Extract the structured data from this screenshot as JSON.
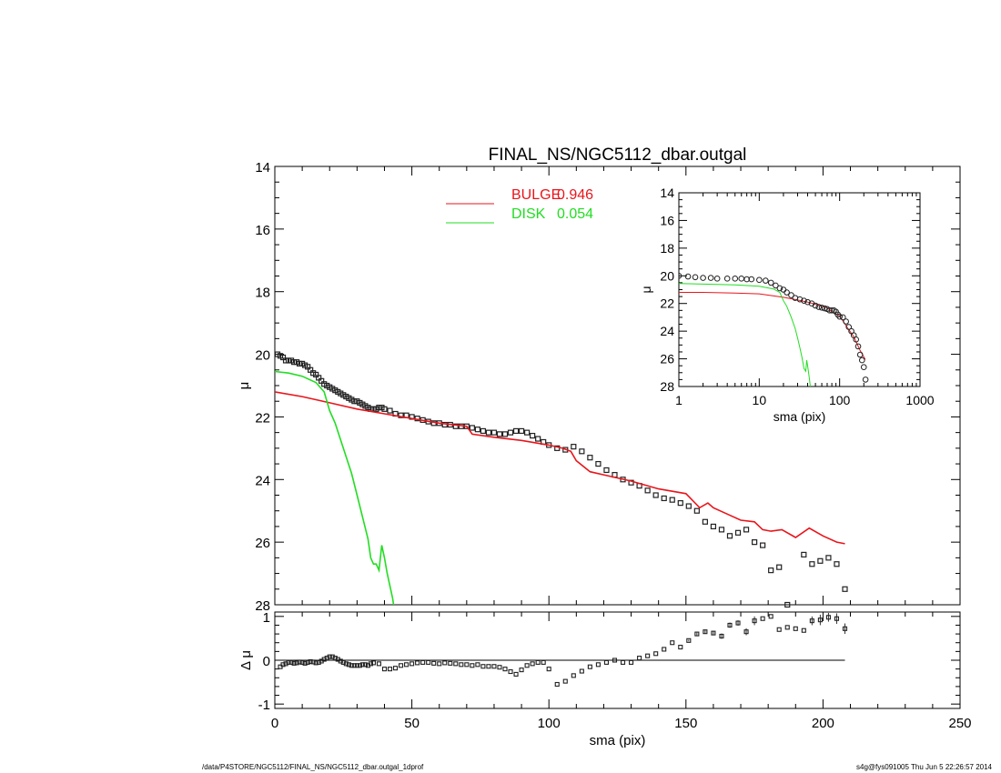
{
  "chart_data": [
    {
      "id": "main",
      "type": "scatter",
      "title": "FINAL_NS/NGC5112_dbar.outgal",
      "xlabel": "",
      "ylabel": "μ",
      "xlim": [
        0,
        250
      ],
      "ylim": [
        28,
        14
      ],
      "yticks": [
        "14",
        "16",
        "18",
        "20",
        "22",
        "24",
        "26",
        "28"
      ],
      "legend": [
        {
          "label": "BULGE",
          "value": "0.946",
          "color": "#e8151b"
        },
        {
          "label": "DISK",
          "value": "0.054",
          "color": "#22dd22"
        }
      ],
      "legend_placement": "top-center",
      "series": [
        {
          "name": "data",
          "style": "open-square",
          "color": "#222222",
          "x": [
            1,
            2,
            3,
            4,
            5,
            6,
            7,
            8,
            9,
            10,
            11,
            12,
            13,
            14,
            15,
            16,
            17,
            18,
            19,
            20,
            21,
            22,
            23,
            24,
            25,
            26,
            27,
            28,
            29,
            30,
            31,
            32,
            33,
            34,
            35,
            36,
            37,
            38,
            39,
            40,
            42,
            44,
            46,
            48,
            50,
            52,
            54,
            56,
            58,
            60,
            62,
            64,
            66,
            68,
            70,
            72,
            74,
            76,
            78,
            80,
            82,
            84,
            86,
            88,
            90,
            92,
            94,
            96,
            98,
            100,
            103,
            106,
            109,
            112,
            115,
            118,
            121,
            124,
            127,
            130,
            133,
            136,
            139,
            142,
            145,
            148,
            151,
            154,
            157,
            160,
            163,
            166,
            169,
            172,
            175,
            178,
            181,
            184,
            187,
            190,
            193,
            196,
            199,
            202,
            205,
            208
          ],
          "y": [
            20.0,
            20.05,
            20.1,
            20.2,
            20.2,
            20.2,
            20.25,
            20.25,
            20.3,
            20.3,
            20.35,
            20.4,
            20.5,
            20.6,
            20.65,
            20.75,
            20.85,
            20.95,
            21.0,
            21.05,
            21.1,
            21.15,
            21.2,
            21.25,
            21.3,
            21.35,
            21.4,
            21.45,
            21.5,
            21.5,
            21.55,
            21.6,
            21.65,
            21.7,
            21.75,
            21.75,
            21.75,
            21.7,
            21.7,
            21.75,
            21.8,
            21.9,
            21.95,
            21.95,
            22.0,
            22.05,
            22.1,
            22.15,
            22.2,
            22.2,
            22.25,
            22.25,
            22.3,
            22.3,
            22.3,
            22.35,
            22.4,
            22.45,
            22.5,
            22.5,
            22.55,
            22.55,
            22.5,
            22.45,
            22.45,
            22.5,
            22.6,
            22.7,
            22.8,
            22.9,
            23.0,
            23.05,
            22.95,
            23.1,
            23.3,
            23.5,
            23.7,
            23.85,
            24.0,
            24.1,
            24.2,
            24.35,
            24.5,
            24.6,
            24.65,
            24.75,
            24.85,
            25.0,
            25.35,
            25.5,
            25.6,
            25.8,
            25.7,
            25.6,
            26.0,
            26.1,
            26.9,
            26.8,
            28.0,
            28.5,
            26.4,
            26.7,
            26.6,
            26.5,
            26.7,
            27.5
          ]
        },
        {
          "name": "BULGE",
          "style": "line",
          "color": "#e8151b",
          "x": [
            0,
            10,
            20,
            30,
            40,
            50,
            60,
            70,
            72,
            80,
            90,
            100,
            105,
            108,
            110,
            115,
            120,
            130,
            140,
            150,
            155,
            158,
            160,
            165,
            170,
            175,
            178,
            181,
            185,
            190,
            195,
            200,
            205,
            208
          ],
          "y": [
            21.2,
            21.35,
            21.55,
            21.75,
            21.9,
            22.05,
            22.2,
            22.3,
            22.55,
            22.65,
            22.75,
            22.9,
            23.0,
            23.1,
            23.4,
            23.75,
            23.85,
            24.05,
            24.3,
            24.45,
            24.9,
            24.75,
            24.9,
            25.1,
            25.3,
            25.35,
            25.6,
            25.65,
            25.6,
            25.85,
            25.55,
            25.8,
            26.0,
            26.05
          ]
        },
        {
          "name": "DISK",
          "style": "line",
          "color": "#22dd22",
          "x": [
            0,
            5,
            10,
            15,
            18,
            20,
            22,
            25,
            28,
            30,
            32,
            34,
            35,
            36,
            37,
            38,
            39,
            40,
            41,
            42,
            43,
            44
          ],
          "y": [
            20.55,
            20.6,
            20.7,
            20.9,
            21.2,
            21.8,
            22.2,
            23.0,
            23.8,
            24.5,
            25.2,
            25.9,
            26.5,
            26.7,
            26.7,
            26.9,
            26.1,
            26.5,
            27.0,
            27.4,
            27.8,
            28.4
          ]
        }
      ]
    },
    {
      "id": "residual",
      "type": "scatter",
      "title": "",
      "xlabel": "sma (pix)",
      "ylabel": "Δ μ",
      "xlim": [
        0,
        250
      ],
      "ylim": [
        -1.1,
        1.1
      ],
      "xticks": [
        "0",
        "50",
        "100",
        "150",
        "200",
        "250"
      ],
      "yticks": [
        "-1",
        "0",
        "1"
      ],
      "series": [
        {
          "name": "residual",
          "style": "open-square",
          "color": "#222222",
          "x": [
            2,
            3,
            4,
            5,
            6,
            7,
            8,
            9,
            10,
            11,
            12,
            13,
            14,
            15,
            16,
            17,
            18,
            19,
            20,
            21,
            22,
            23,
            24,
            25,
            26,
            27,
            28,
            29,
            30,
            31,
            32,
            33,
            34,
            35,
            36,
            38,
            40,
            42,
            44,
            46,
            48,
            50,
            52,
            54,
            56,
            58,
            60,
            62,
            64,
            66,
            68,
            70,
            72,
            74,
            76,
            78,
            80,
            82,
            84,
            86,
            88,
            90,
            92,
            94,
            96,
            98,
            100,
            103,
            106,
            109,
            112,
            115,
            118,
            121,
            124,
            127,
            130,
            133,
            136,
            139,
            142,
            145,
            148,
            151,
            154,
            157,
            160,
            163,
            166,
            169,
            172,
            175,
            178,
            181,
            184,
            187,
            190,
            193,
            196,
            199,
            202,
            205,
            208
          ],
          "y": [
            -0.15,
            -0.1,
            -0.08,
            -0.05,
            -0.05,
            -0.07,
            -0.06,
            -0.04,
            -0.05,
            -0.07,
            -0.05,
            -0.03,
            -0.04,
            -0.06,
            -0.05,
            -0.02,
            0.02,
            0.05,
            0.08,
            0.08,
            0.05,
            0.02,
            -0.02,
            -0.05,
            -0.08,
            -0.1,
            -0.12,
            -0.12,
            -0.12,
            -0.12,
            -0.1,
            -0.1,
            -0.12,
            -0.08,
            -0.06,
            -0.08,
            -0.2,
            -0.2,
            -0.18,
            -0.12,
            -0.1,
            -0.08,
            -0.06,
            -0.05,
            -0.05,
            -0.07,
            -0.08,
            -0.06,
            -0.07,
            -0.08,
            -0.1,
            -0.1,
            -0.12,
            -0.1,
            -0.14,
            -0.14,
            -0.14,
            -0.16,
            -0.2,
            -0.26,
            -0.32,
            -0.22,
            -0.12,
            -0.08,
            -0.05,
            -0.05,
            -0.2,
            -0.55,
            -0.48,
            -0.35,
            -0.25,
            -0.15,
            -0.1,
            -0.05,
            0.0,
            -0.05,
            -0.05,
            0.05,
            0.1,
            0.15,
            0.25,
            0.4,
            0.3,
            0.45,
            0.6,
            0.65,
            0.62,
            0.55,
            0.8,
            0.85,
            0.65,
            0.9,
            0.95,
            1.0,
            0.7,
            0.75,
            0.72,
            0.68,
            0.9,
            0.92,
            0.98,
            0.95,
            0.72
          ],
          "err": [
            0,
            0,
            0,
            0,
            0,
            0,
            0,
            0,
            0,
            0,
            0,
            0,
            0,
            0,
            0,
            0,
            0,
            0,
            0,
            0,
            0,
            0,
            0,
            0,
            0,
            0,
            0,
            0,
            0,
            0,
            0,
            0,
            0,
            0,
            0,
            0,
            0,
            0,
            0,
            0,
            0,
            0,
            0,
            0,
            0,
            0,
            0,
            0,
            0,
            0,
            0,
            0,
            0,
            0,
            0,
            0,
            0,
            0,
            0,
            0,
            0,
            0,
            0,
            0,
            0,
            0,
            0,
            0,
            0,
            0,
            0,
            0,
            0,
            0,
            0,
            0,
            0,
            0,
            0,
            0,
            0,
            0,
            0,
            0.02,
            0.03,
            0.04,
            0.05,
            0.06,
            0.06,
            0.06,
            0.08,
            0.1,
            0.0,
            0.0,
            0.0,
            0.0,
            0.0,
            0.0,
            0.1,
            0.12,
            0.1,
            0.12,
            0.12
          ]
        }
      ]
    },
    {
      "id": "inset",
      "type": "scatter",
      "title": "",
      "xlabel": "sma (pix)",
      "ylabel": "μ",
      "xscale": "log",
      "xlim": [
        1,
        1000
      ],
      "ylim": [
        28,
        14
      ],
      "xticks": [
        "1",
        "10",
        "100",
        "1000"
      ],
      "yticks": [
        "14",
        "16",
        "18",
        "20",
        "22",
        "24",
        "26",
        "28"
      ],
      "series": [
        {
          "name": "data",
          "style": "open-circle",
          "color": "#222222",
          "x": [
            1,
            1.3,
            1.6,
            2,
            2.5,
            3,
            4,
            5,
            6,
            7,
            8,
            10,
            12,
            14,
            16,
            18,
            20,
            22,
            25,
            28,
            32,
            36,
            40,
            45,
            50,
            55,
            60,
            65,
            70,
            75,
            80,
            85,
            90,
            95,
            100,
            110,
            120,
            130,
            140,
            150,
            160,
            170,
            180,
            190,
            200,
            210
          ],
          "y": [
            20.0,
            20.05,
            20.1,
            20.15,
            20.15,
            20.2,
            20.2,
            20.2,
            20.2,
            20.25,
            20.25,
            20.3,
            20.35,
            20.5,
            20.7,
            20.9,
            21.0,
            21.2,
            21.4,
            21.6,
            21.7,
            21.8,
            21.9,
            22.0,
            22.15,
            22.25,
            22.3,
            22.35,
            22.4,
            22.5,
            22.5,
            22.5,
            22.6,
            22.8,
            22.95,
            23.0,
            23.3,
            23.7,
            24.0,
            24.3,
            24.6,
            25.1,
            25.7,
            26.1,
            26.6,
            27.5
          ]
        },
        {
          "name": "BULGE",
          "style": "line",
          "color": "#e8151b",
          "x": [
            1,
            2,
            5,
            10,
            20,
            30,
            40,
            50,
            60,
            70,
            80,
            100,
            120,
            150,
            180,
            208
          ],
          "y": [
            21.2,
            21.2,
            21.25,
            21.3,
            21.55,
            21.75,
            21.9,
            22.05,
            22.2,
            22.3,
            22.6,
            22.9,
            23.6,
            24.4,
            25.4,
            26.05
          ]
        },
        {
          "name": "DISK",
          "style": "line",
          "color": "#22dd22",
          "x": [
            1,
            2,
            5,
            10,
            15,
            18,
            20,
            22,
            25,
            28,
            30,
            32,
            34,
            36,
            38,
            39,
            40,
            42,
            44
          ],
          "y": [
            20.55,
            20.6,
            20.65,
            20.75,
            20.95,
            21.2,
            21.8,
            22.2,
            23.0,
            23.8,
            24.5,
            25.2,
            25.9,
            26.7,
            26.9,
            26.1,
            26.5,
            27.4,
            28.4
          ]
        }
      ]
    }
  ],
  "footer": {
    "left": "/data/P4STORE/NGC5112/FINAL_NS/NGC5112_dbar.outgal_1dprof",
    "right": "s4g@fys091005  Thu Jun  5 22:26:57 2014"
  }
}
